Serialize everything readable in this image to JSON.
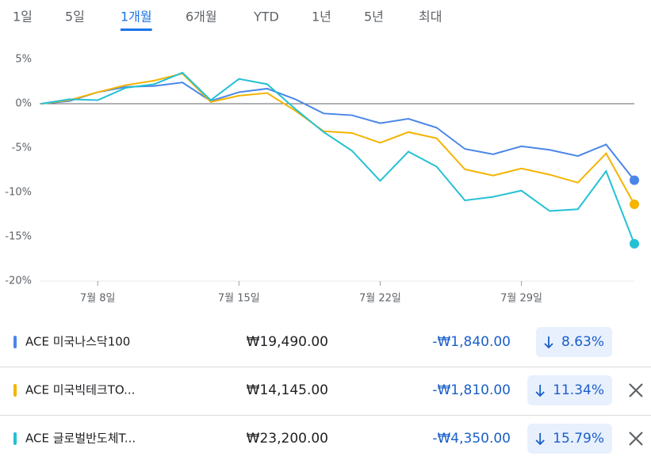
{
  "tabs": [
    "1일",
    "5일",
    "1개월",
    "6개월",
    "YTD",
    "1년",
    "5년",
    "최대"
  ],
  "selected_tab": 2,
  "chart_data": {
    "type": "line",
    "categories": [
      null,
      null,
      "7월 8일",
      null,
      null,
      null,
      null,
      "7월 15일",
      null,
      null,
      null,
      null,
      "7월 22일",
      null,
      null,
      null,
      null,
      "7월 29일",
      null,
      null,
      null,
      null
    ],
    "ylim": [
      -20,
      5
    ],
    "yticks": [
      {
        "value": 5,
        "label": "5%"
      },
      {
        "value": 0,
        "label": "0%"
      },
      {
        "value": -5,
        "label": "-5%"
      },
      {
        "value": -10,
        "label": "-10%"
      },
      {
        "value": -15,
        "label": "-15%"
      },
      {
        "value": -20,
        "label": "-20%"
      }
    ],
    "series": [
      {
        "name": "ACE 미국나스닥100",
        "color": "#4a86e8",
        "values": [
          0,
          0.3,
          1.3,
          1.9,
          2.0,
          2.4,
          0.3,
          1.3,
          1.7,
          0.5,
          -1.1,
          -1.3,
          -2.2,
          -1.7,
          -2.7,
          -5.1,
          -5.7,
          -4.8,
          -5.2,
          -5.9,
          -4.6,
          -8.63
        ]
      },
      {
        "name": "ACE 미국빅테크TO...",
        "color": "#f4b400",
        "values": [
          0,
          0.4,
          1.3,
          2.1,
          2.6,
          3.4,
          0.2,
          0.9,
          1.2,
          -0.8,
          -3.1,
          -3.3,
          -4.4,
          -3.2,
          -3.9,
          -7.4,
          -8.1,
          -7.3,
          -8.0,
          -8.9,
          -5.6,
          -11.34
        ]
      },
      {
        "name": "ACE 글로벌반도체T...",
        "color": "#24c1d4",
        "values": [
          0,
          0.5,
          0.4,
          1.8,
          2.2,
          3.5,
          0.4,
          2.8,
          2.2,
          -0.6,
          -3.2,
          -5.3,
          -8.7,
          -5.4,
          -7.1,
          -10.9,
          -10.5,
          -9.8,
          -12.1,
          -11.9,
          -7.6,
          -15.79
        ]
      }
    ]
  },
  "table": {
    "rows": [
      {
        "price": "₩19,490.00",
        "change": "-₩1,840.00",
        "change_pct": "8.63%",
        "removable": false
      },
      {
        "price": "₩14,145.00",
        "change": "-₩1,810.00",
        "change_pct": "11.34%",
        "removable": true
      },
      {
        "price": "₩23,200.00",
        "change": "-₩4,350.00",
        "change_pct": "15.79%",
        "removable": true
      }
    ]
  }
}
